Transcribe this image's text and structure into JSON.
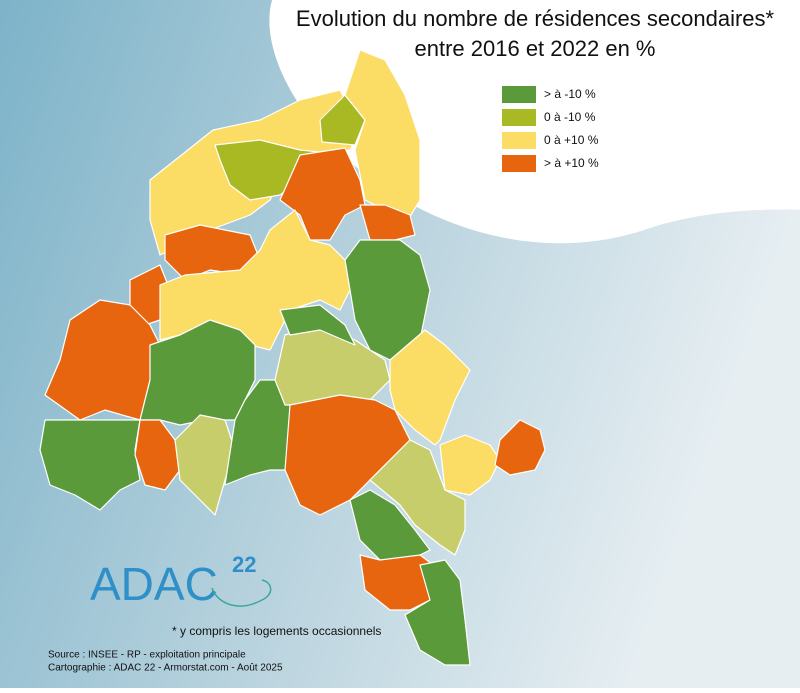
{
  "title": {
    "line1": "Evolution du nombre de résidences secondaires*",
    "line2": "entre 2016 et 2022 en %"
  },
  "legend": [
    {
      "label": "> à -10 %",
      "color": "#5b9a3a"
    },
    {
      "label": "0 à -10 %",
      "color": "#a9b923"
    },
    {
      "label": "0 à +10 %",
      "color": "#fbdc65"
    },
    {
      "label": "> à +10 %",
      "color": "#e8650f"
    }
  ],
  "map_fill": {
    "light_green": "#c7cd6b"
  },
  "logo": {
    "text": "ADAC",
    "number": "22"
  },
  "footnote": "* y compris les logements occasionnels",
  "source": {
    "line1": "Source : INSEE - RP - exploitation principale",
    "line2": "Cartographie : ADAC 22 - Armorstat.com - Août 2025"
  }
}
